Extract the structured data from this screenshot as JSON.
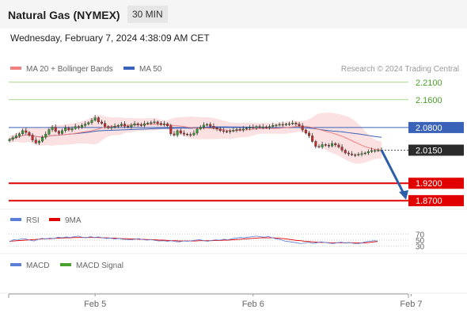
{
  "header": {
    "title": "Natural Gas (NYMEX)",
    "timeframe": "30 MIN"
  },
  "date_line": "Wednesday, February 7, 2024 4:38:09 AM CET",
  "credit": "Research © 2024 Trading Central",
  "colors": {
    "ma20": "#f08080",
    "ma50": "#3a62b8",
    "bands": "#fbe1e1",
    "resistance": "#a8d890",
    "resistance_text": "#4aa02c",
    "support": "#e00000",
    "pivot": "#3a62b8",
    "last": "#2b2b2b",
    "arrow": "#2d5fa8",
    "rsi": "#5b7fd6",
    "rsi_ma": "#e00000",
    "macd": "#5b7fd6",
    "macd_signal": "#4aa02c",
    "candle_up": "#2e9e2e",
    "candle_down": "#c92a2a"
  },
  "chart_data": {
    "type": "candlestick",
    "instrument": "Natural Gas (NYMEX)",
    "interval": "30 MIN",
    "ylim": [
      1.85,
      2.23
    ],
    "x_ticks": [
      "Feb 5",
      "Feb 6",
      "Feb 7"
    ],
    "x_tick_index": [
      26,
      74,
      122
    ],
    "legend": [
      {
        "name": "MA 20 + Bollinger Bands",
        "color": "#f08080"
      },
      {
        "name": "MA 50",
        "color": "#3a62b8"
      }
    ],
    "levels": [
      {
        "value": "2.2100",
        "kind": "resistance"
      },
      {
        "value": "2.1600",
        "kind": "resistance"
      },
      {
        "value": "2.0800",
        "kind": "pivot"
      },
      {
        "value": "2.0150",
        "kind": "last"
      },
      {
        "value": "1.9200",
        "kind": "support"
      },
      {
        "value": "1.8700",
        "kind": "support"
      }
    ],
    "arrow": {
      "from": 2.015,
      "to": 1.875
    },
    "closes": [
      2.046,
      2.051,
      2.056,
      2.062,
      2.071,
      2.066,
      2.058,
      2.044,
      2.036,
      2.041,
      2.052,
      2.061,
      2.074,
      2.081,
      2.069,
      2.063,
      2.071,
      2.079,
      2.073,
      2.077,
      2.083,
      2.08,
      2.086,
      2.09,
      2.094,
      2.101,
      2.108,
      2.096,
      2.092,
      2.083,
      2.079,
      2.081,
      2.084,
      2.086,
      2.09,
      2.084,
      2.082,
      2.087,
      2.091,
      2.088,
      2.086,
      2.091,
      2.093,
      2.094,
      2.096,
      2.092,
      2.089,
      2.091,
      2.085,
      2.062,
      2.058,
      2.071,
      2.064,
      2.061,
      2.06,
      2.059,
      2.064,
      2.076,
      2.081,
      2.087,
      2.089,
      2.084,
      2.079,
      2.076,
      2.071,
      2.069,
      2.068,
      2.07,
      2.072,
      2.075,
      2.073,
      2.076,
      2.078,
      2.081,
      2.079,
      2.083,
      2.081,
      2.082,
      2.08,
      2.083,
      2.086,
      2.087,
      2.089,
      2.088,
      2.09,
      2.091,
      2.093,
      2.09,
      2.085,
      2.073,
      2.064,
      2.056,
      2.04,
      2.026,
      2.024,
      2.031,
      2.029,
      2.027,
      2.034,
      2.03,
      2.024,
      2.015,
      2.007,
      2.004,
      2.002,
      2.001,
      2.003,
      2.005,
      2.007,
      2.011,
      2.014,
      2.014,
      2.015,
      2.015
    ],
    "rsi": {
      "legend": [
        {
          "name": "RSI",
          "color": "#5b7fd6"
        },
        {
          "name": "9MA",
          "color": "#e00000"
        }
      ],
      "ylim": [
        20,
        80
      ],
      "ticks": [
        "70",
        "50",
        "30"
      ],
      "values": [
        44,
        52,
        50,
        55,
        54,
        50,
        47,
        52,
        56,
        54,
        57,
        55,
        60,
        58,
        61,
        59,
        62,
        64,
        60,
        58,
        62,
        59,
        61,
        58,
        56,
        57,
        54,
        56,
        53,
        52,
        51,
        53,
        55,
        52,
        50,
        52,
        49,
        47,
        48,
        46,
        48,
        45,
        44,
        47,
        46,
        48,
        50,
        52,
        48,
        46,
        49,
        51,
        50,
        53,
        51,
        55,
        57,
        59,
        58,
        60,
        62,
        64,
        62,
        60,
        63,
        58,
        54,
        52,
        47,
        45,
        43,
        41,
        38,
        40,
        43,
        39,
        41,
        44,
        42,
        40,
        38,
        41,
        43,
        40,
        42,
        39,
        37,
        40,
        44,
        46,
        48,
        47
      ],
      "ma": [
        46,
        47,
        48,
        49,
        50,
        51,
        52,
        53,
        54,
        55,
        55,
        56,
        57,
        57,
        58,
        58,
        59,
        59,
        59,
        59,
        59,
        59,
        59,
        58,
        58,
        57,
        57,
        56,
        55,
        55,
        54,
        54,
        53,
        53,
        52,
        52,
        51,
        50,
        50,
        49,
        48,
        48,
        47,
        47,
        47,
        47,
        47,
        48,
        48,
        48,
        48,
        49,
        49,
        50,
        50,
        51,
        52,
        53,
        54,
        55,
        56,
        57,
        58,
        58,
        58,
        58,
        57,
        56,
        55,
        53,
        51,
        49,
        48,
        46,
        45,
        44,
        43,
        42,
        42,
        41,
        41,
        41,
        41,
        41,
        41,
        41,
        41,
        40,
        41,
        42,
        44,
        45
      ]
    },
    "macd": {
      "legend": [
        {
          "name": "MACD",
          "color": "#5b7fd6"
        },
        {
          "name": "MACD Signal",
          "color": "#4aa02c"
        }
      ]
    }
  }
}
